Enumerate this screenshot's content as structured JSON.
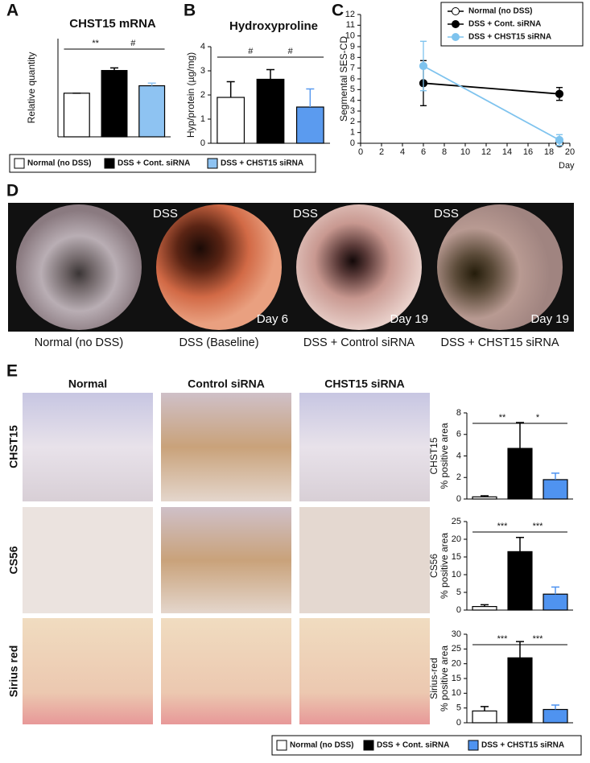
{
  "panel_labels": [
    "A",
    "B",
    "C",
    "D",
    "E"
  ],
  "chart_data": [
    {
      "type": "bar",
      "title": "CHST15 mRNA",
      "y_label": "Relative quantity",
      "categories": [
        null,
        null,
        null
      ],
      "values": [
        1.0,
        1.52,
        1.17
      ],
      "errors": [
        0,
        0.06,
        0.06
      ],
      "colors": [
        "#ffffff",
        "#000000",
        "#8ec3f2"
      ],
      "ylim": [
        0,
        2.25
      ],
      "annotations": [
        "**",
        "#"
      ]
    },
    {
      "type": "bar",
      "title": "Hydroxyproline",
      "y_label": "Hyp/protein (µg/mg)",
      "categories": [
        null,
        null,
        null
      ],
      "values": [
        1.9,
        2.65,
        1.5
      ],
      "errors": [
        0.65,
        0.4,
        0.75
      ],
      "colors": [
        "#ffffff",
        "#000000",
        "#5b9bef"
      ],
      "ylim": [
        0,
        4
      ],
      "yticks": [
        0,
        1,
        2,
        3,
        4
      ],
      "annotations": [
        "#",
        "#"
      ]
    },
    {
      "type": "line",
      "y_label": "Segmental SES-CD",
      "x_label": "Day",
      "x": [
        6,
        19
      ],
      "series": [
        {
          "name": "Normal (no DSS)",
          "color": "#ffffff",
          "values": [
            null,
            0
          ],
          "errors": [
            null,
            0
          ]
        },
        {
          "name": "DSS + Cont. siRNA",
          "color": "#000000",
          "values": [
            5.6,
            4.6
          ],
          "errors": [
            2.1,
            0.6
          ]
        },
        {
          "name": "DSS + CHST15 siRNA",
          "color": "#7ec3ee",
          "values": [
            7.2,
            0.3
          ],
          "errors": [
            2.3,
            0.5
          ]
        }
      ],
      "xlim": [
        0,
        20
      ],
      "xticks": [
        0,
        2,
        4,
        6,
        8,
        10,
        12,
        14,
        16,
        18,
        20
      ],
      "ylim": [
        0,
        12
      ],
      "yticks": [
        0,
        1,
        2,
        3,
        4,
        5,
        6,
        7,
        8,
        9,
        10,
        11,
        12
      ],
      "legend": "upper right"
    },
    {
      "type": "bar",
      "y_label": "CHST15",
      "y_sublabel": "% positive area",
      "categories": [
        null,
        null,
        null
      ],
      "values": [
        0.2,
        4.7,
        1.8
      ],
      "errors": [
        0.1,
        2.4,
        0.6
      ],
      "colors": [
        "#ffffff",
        "#000000",
        "#4f93f0"
      ],
      "ylim": [
        0,
        8
      ],
      "yticks": [
        0,
        2,
        4,
        6,
        8
      ],
      "annotations": [
        "**",
        "*"
      ]
    },
    {
      "type": "bar",
      "y_label": "CS56",
      "y_sublabel": "% positive area",
      "categories": [
        null,
        null,
        null
      ],
      "values": [
        1,
        16.5,
        4.5
      ],
      "errors": [
        0.5,
        4,
        2
      ],
      "colors": [
        "#ffffff",
        "#000000",
        "#4f93f0"
      ],
      "ylim": [
        0,
        25
      ],
      "yticks": [
        0,
        5,
        10,
        15,
        20,
        25
      ],
      "annotations": [
        "***",
        "***"
      ]
    },
    {
      "type": "bar",
      "y_label": "Sirius-red",
      "y_sublabel": "% positive area",
      "categories": [
        null,
        null,
        null
      ],
      "values": [
        4,
        22,
        4.5
      ],
      "errors": [
        1.5,
        5.5,
        1.5
      ],
      "colors": [
        "#ffffff",
        "#000000",
        "#4f93f0"
      ],
      "ylim": [
        0,
        30
      ],
      "yticks": [
        0,
        5,
        10,
        15,
        20,
        25,
        30
      ],
      "annotations": [
        "***",
        "***"
      ]
    }
  ],
  "legends": [
    {
      "entries": [
        {
          "name": "Normal (no DSS)",
          "color": "#ffffff"
        },
        {
          "name": "DSS + Cont. siRNA",
          "color": "#000000"
        },
        {
          "name": "DSS + CHST15 siRNA",
          "color": "#8ec3f2"
        }
      ]
    },
    {
      "entries": [
        {
          "name": "Normal (no DSS)",
          "color": "#ffffff"
        },
        {
          "name": "DSS + Cont. siRNA",
          "color": "#000000"
        },
        {
          "name": "DSS + CHST15 siRNA",
          "color": "#4f93f0"
        }
      ]
    }
  ],
  "endoscopy": {
    "images": [
      {
        "caption": "Normal (no DSS)"
      },
      {
        "tag": "DSS",
        "day": "Day 6",
        "caption": "DSS (Baseline)"
      },
      {
        "tag": "DSS",
        "day": "Day 19",
        "caption": "DSS + Control siRNA"
      },
      {
        "tag": "DSS",
        "day": "Day 19",
        "caption": "DSS + CHST15 siRNA"
      }
    ]
  },
  "histology": {
    "columns": [
      "Normal",
      "Control siRNA",
      "CHST15 siRNA"
    ],
    "rows": [
      {
        "label": "CHST15",
        "color": "#a5702a"
      },
      {
        "label": "CS56",
        "color": "#a5702a"
      },
      {
        "label": "Sirius red",
        "color": "#d8203a"
      }
    ]
  }
}
